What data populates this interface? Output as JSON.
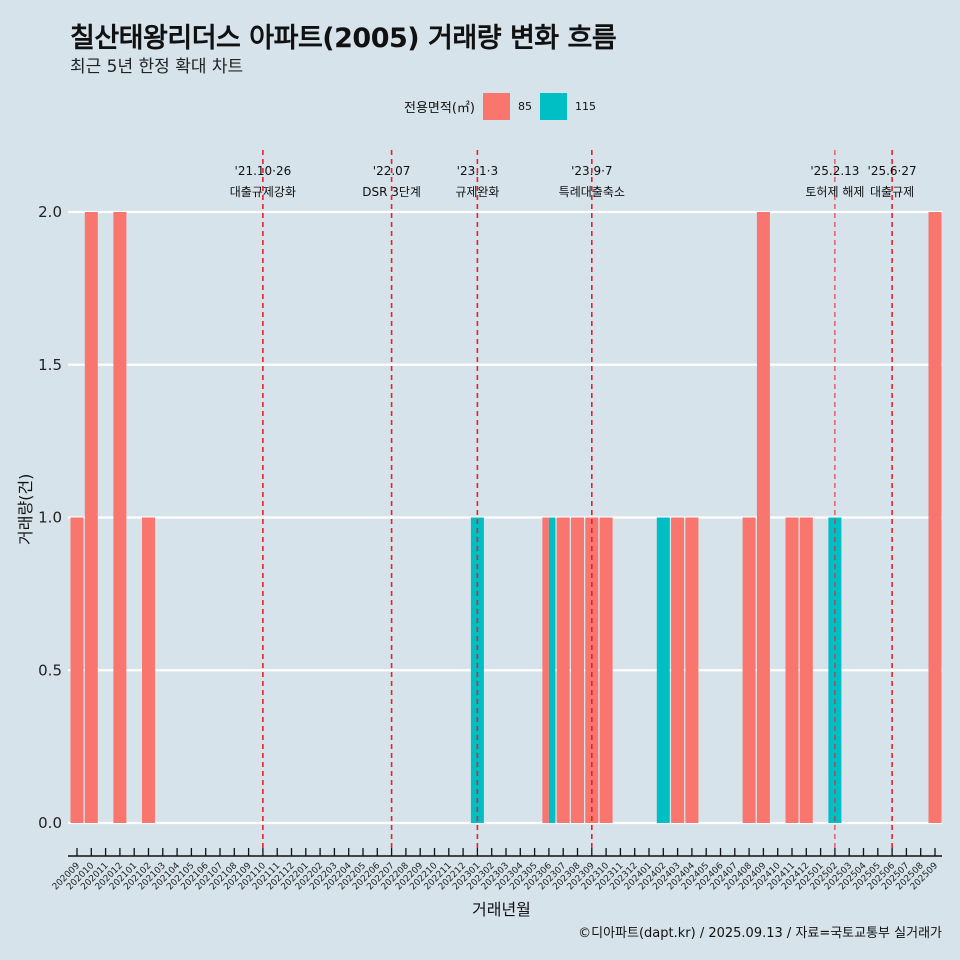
{
  "header": {
    "title": "칠산태왕리더스 아파트(2005) 거래량 변화 흐름",
    "subtitle": "최근 5년 한정 확대 차트"
  },
  "legend": {
    "title": "전용면적(㎡)",
    "items": [
      {
        "label": "85",
        "color": "#f8766d"
      },
      {
        "label": "115",
        "color": "#00bfc4"
      }
    ]
  },
  "caption": "©디아파트(dapt.kr) / 2025.09.13 / 자료=국토교통부 실거래가",
  "chart_data": {
    "type": "bar",
    "title": "칠산태왕리더스 아파트(2005) 거래량 변화 흐름",
    "subtitle": "최근 5년 한정 확대 차트",
    "xlabel": "거래년월",
    "ylabel": "거래량(건)",
    "ylim": [
      0,
      2
    ],
    "yticks": [
      "0.0",
      "0.5",
      "1.0",
      "1.5",
      "2.0"
    ],
    "ytick_values": [
      0,
      0.5,
      1.0,
      1.5,
      2.0
    ],
    "grid": true,
    "legend_position": "top",
    "categories": [
      "202009",
      "202010",
      "202011",
      "202012",
      "202101",
      "202102",
      "202103",
      "202104",
      "202105",
      "202106",
      "202107",
      "202108",
      "202109",
      "202110",
      "202111",
      "202112",
      "202201",
      "202202",
      "202203",
      "202204",
      "202205",
      "202206",
      "202207",
      "202208",
      "202209",
      "202210",
      "202211",
      "202212",
      "202301",
      "202302",
      "202303",
      "202304",
      "202305",
      "202306",
      "202307",
      "202308",
      "202309",
      "202310",
      "202311",
      "202312",
      "202401",
      "202402",
      "202403",
      "202404",
      "202405",
      "202406",
      "202407",
      "202408",
      "202409",
      "202410",
      "202411",
      "202412",
      "202501",
      "202502",
      "202503",
      "202504",
      "202505",
      "202506",
      "202507",
      "202508",
      "202509"
    ],
    "series": [
      {
        "name": "85",
        "color": "#f8766d",
        "points": [
          {
            "x": "202009",
            "y": 1
          },
          {
            "x": "202010",
            "y": 2
          },
          {
            "x": "202012",
            "y": 2
          },
          {
            "x": "202102",
            "y": 1
          },
          {
            "x": "202306",
            "y": 1
          },
          {
            "x": "202307",
            "y": 1
          },
          {
            "x": "202308",
            "y": 1
          },
          {
            "x": "202309",
            "y": 1
          },
          {
            "x": "202310",
            "y": 1
          },
          {
            "x": "202403",
            "y": 1
          },
          {
            "x": "202404",
            "y": 1
          },
          {
            "x": "202408",
            "y": 1
          },
          {
            "x": "202409",
            "y": 2
          },
          {
            "x": "202411",
            "y": 1
          },
          {
            "x": "202412",
            "y": 1
          },
          {
            "x": "202509",
            "y": 2
          }
        ]
      },
      {
        "name": "115",
        "color": "#00bfc4",
        "points": [
          {
            "x": "202301",
            "y": 1
          },
          {
            "x": "202306",
            "y": 1
          },
          {
            "x": "202402",
            "y": 1
          },
          {
            "x": "202502",
            "y": 1
          }
        ]
      }
    ],
    "annotations": [
      {
        "x": "202110",
        "date": "'21.10·26",
        "label": "대출규제강화"
      },
      {
        "x": "202207",
        "date": "'22.07",
        "label": "DSR 3단계"
      },
      {
        "x": "202301",
        "date": "'23.1·3",
        "label": "규제완화"
      },
      {
        "x": "202309",
        "date": "'23.9·7",
        "label": "특례대출축소"
      },
      {
        "x": "202502",
        "date": "'25.2.13",
        "label": "토허제 해제"
      },
      {
        "x": "202506",
        "date": "'25.6·27",
        "label": "대출규제"
      }
    ]
  }
}
